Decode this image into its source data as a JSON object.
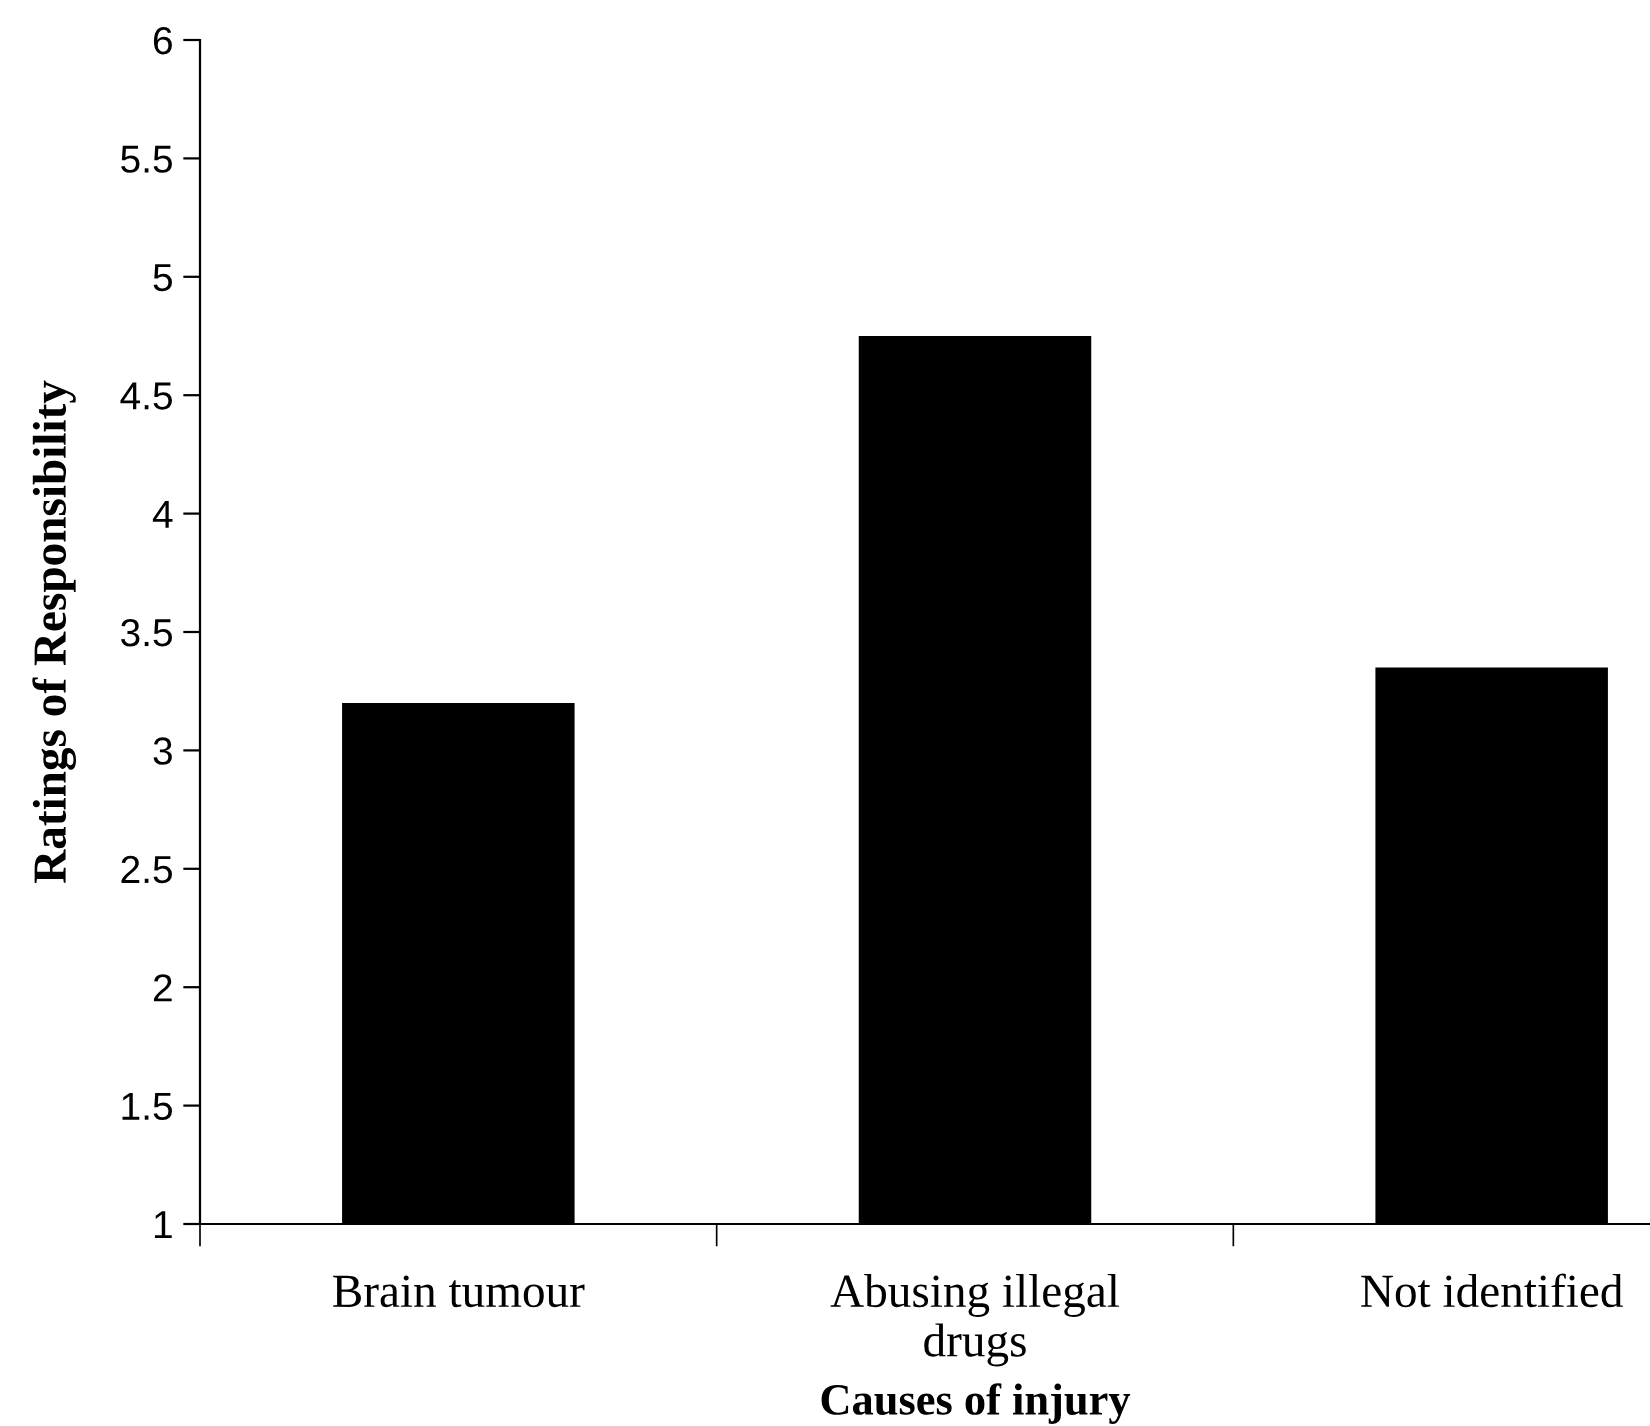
{
  "chart_data": {
    "type": "bar",
    "xlabel": "Causes of injury",
    "ylabel": "Ratings of Responsibility",
    "categories": [
      "Brain tumour",
      "Abusing illegal\ndrugs",
      "Not identified"
    ],
    "values": [
      3.2,
      4.75,
      3.35
    ],
    "color": "#000000",
    "ylim": [
      1,
      6
    ],
    "yticks": [
      1,
      1.5,
      2,
      2.5,
      3,
      3.5,
      4,
      4.5,
      5,
      5.5,
      6
    ],
    "grid": false
  }
}
